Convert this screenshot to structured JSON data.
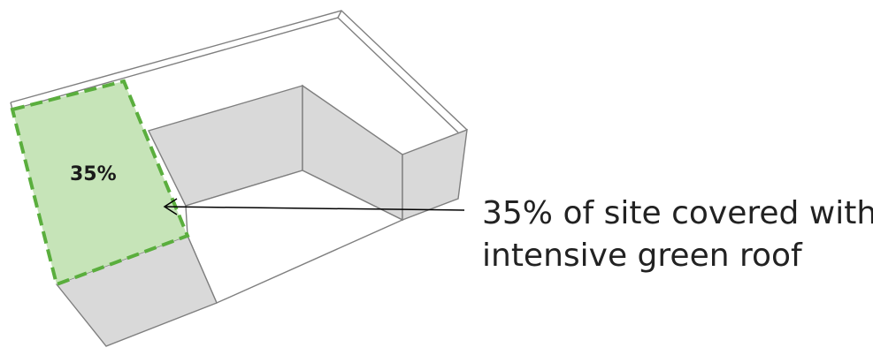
{
  "diagram": {
    "roof_label": "35%",
    "callout_line1": "35% of site covered with",
    "callout_line2": "intensive green roof",
    "coverage_fraction": 0.35
  },
  "colors": {
    "wall_fill": "#d9d9d9",
    "edge_stroke": "#7f7f7f",
    "green_fill": "#c6e4b8",
    "green_dash": "#5aae3d",
    "arrow": "#000000"
  }
}
